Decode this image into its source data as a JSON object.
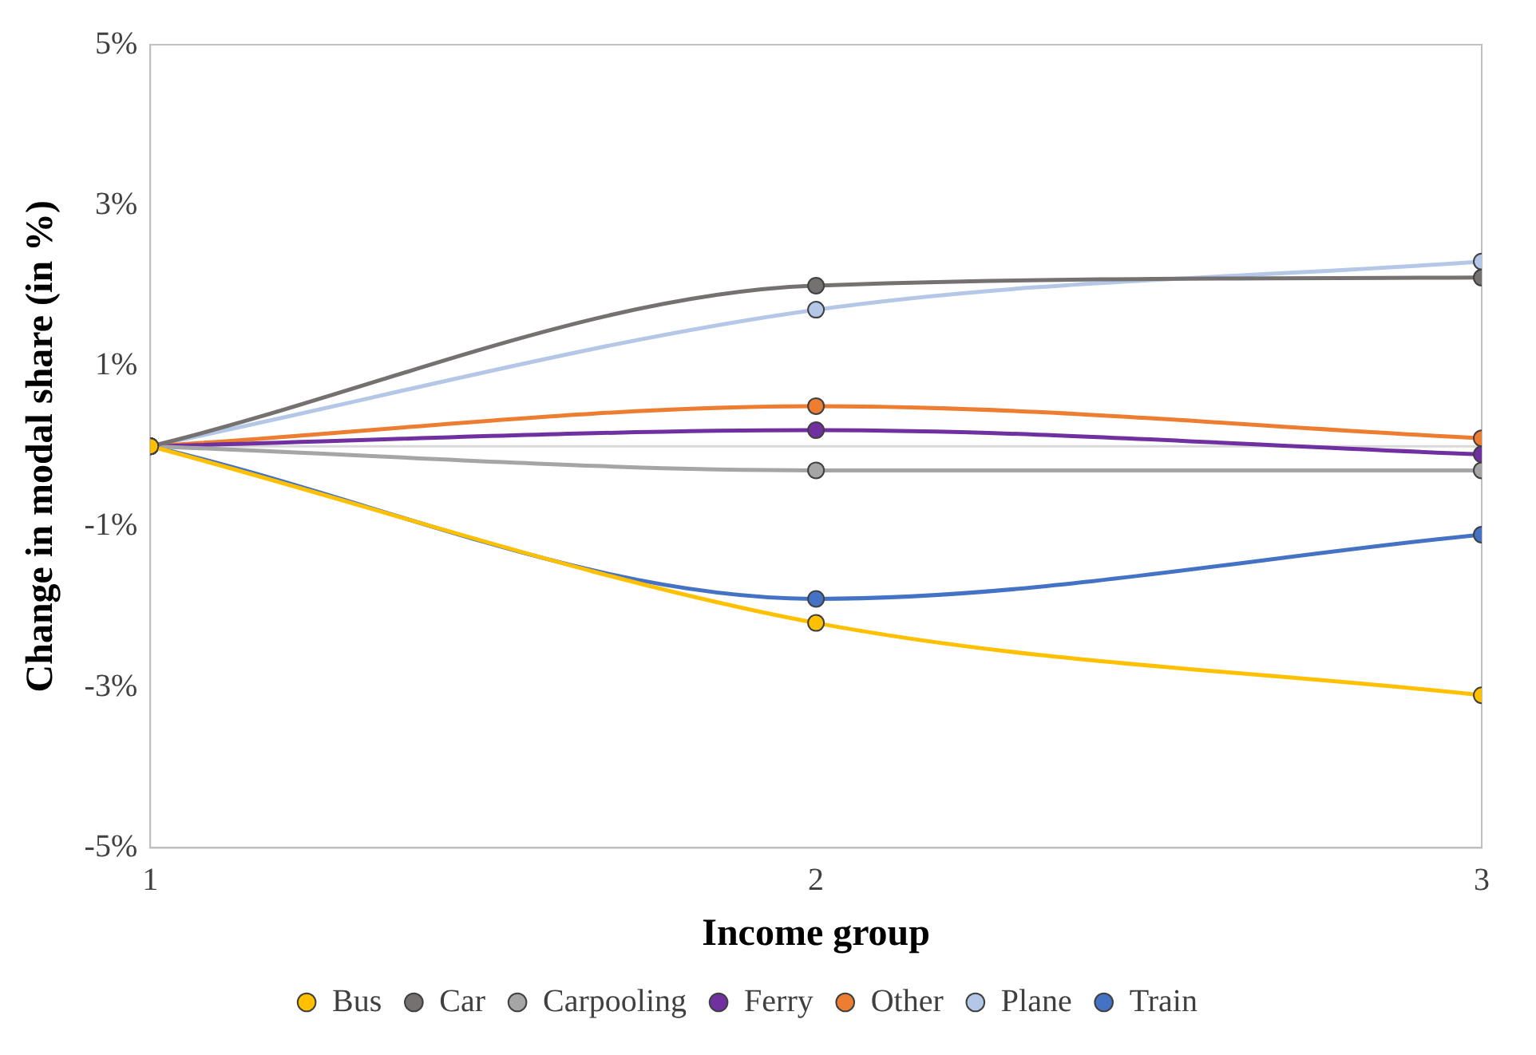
{
  "chart_data": {
    "type": "line",
    "xlabel": "Income group",
    "ylabel": "Change in modal share (in %)",
    "x": [
      1,
      2,
      3
    ],
    "xlim": [
      1,
      3
    ],
    "xticks": [
      1,
      2,
      3
    ],
    "ylim": [
      -5,
      5
    ],
    "yticks": [
      {
        "value": -5,
        "label": "-5%"
      },
      {
        "value": -3,
        "label": "-3%"
      },
      {
        "value": -1,
        "label": "-1%"
      },
      {
        "value": 1,
        "label": "1%"
      },
      {
        "value": 3,
        "label": "3%"
      },
      {
        "value": 5,
        "label": "5%"
      }
    ],
    "grid": false,
    "legend": "bottom",
    "marker": "circle",
    "line_style": "solid",
    "ref_lines": [
      {
        "axis": "y",
        "value": 0,
        "color": "#d9d9d9"
      }
    ],
    "series": [
      {
        "name": "Bus",
        "color": "#ffc000",
        "values": [
          0,
          -2.2,
          -3.1
        ]
      },
      {
        "name": "Car",
        "color": "#767171",
        "values": [
          0,
          2.0,
          2.1
        ]
      },
      {
        "name": "Carpooling",
        "color": "#a5a5a5",
        "values": [
          0,
          -0.3,
          -0.3
        ]
      },
      {
        "name": "Ferry",
        "color": "#7030a0",
        "values": [
          0,
          0.2,
          -0.1
        ]
      },
      {
        "name": "Other",
        "color": "#ed7d31",
        "values": [
          0,
          0.5,
          0.1
        ]
      },
      {
        "name": "Plane",
        "color": "#b4c7e7",
        "values": [
          0,
          1.7,
          2.3
        ]
      },
      {
        "name": "Train",
        "color": "#4472c4",
        "values": [
          0,
          -1.9,
          -1.1
        ]
      }
    ]
  }
}
